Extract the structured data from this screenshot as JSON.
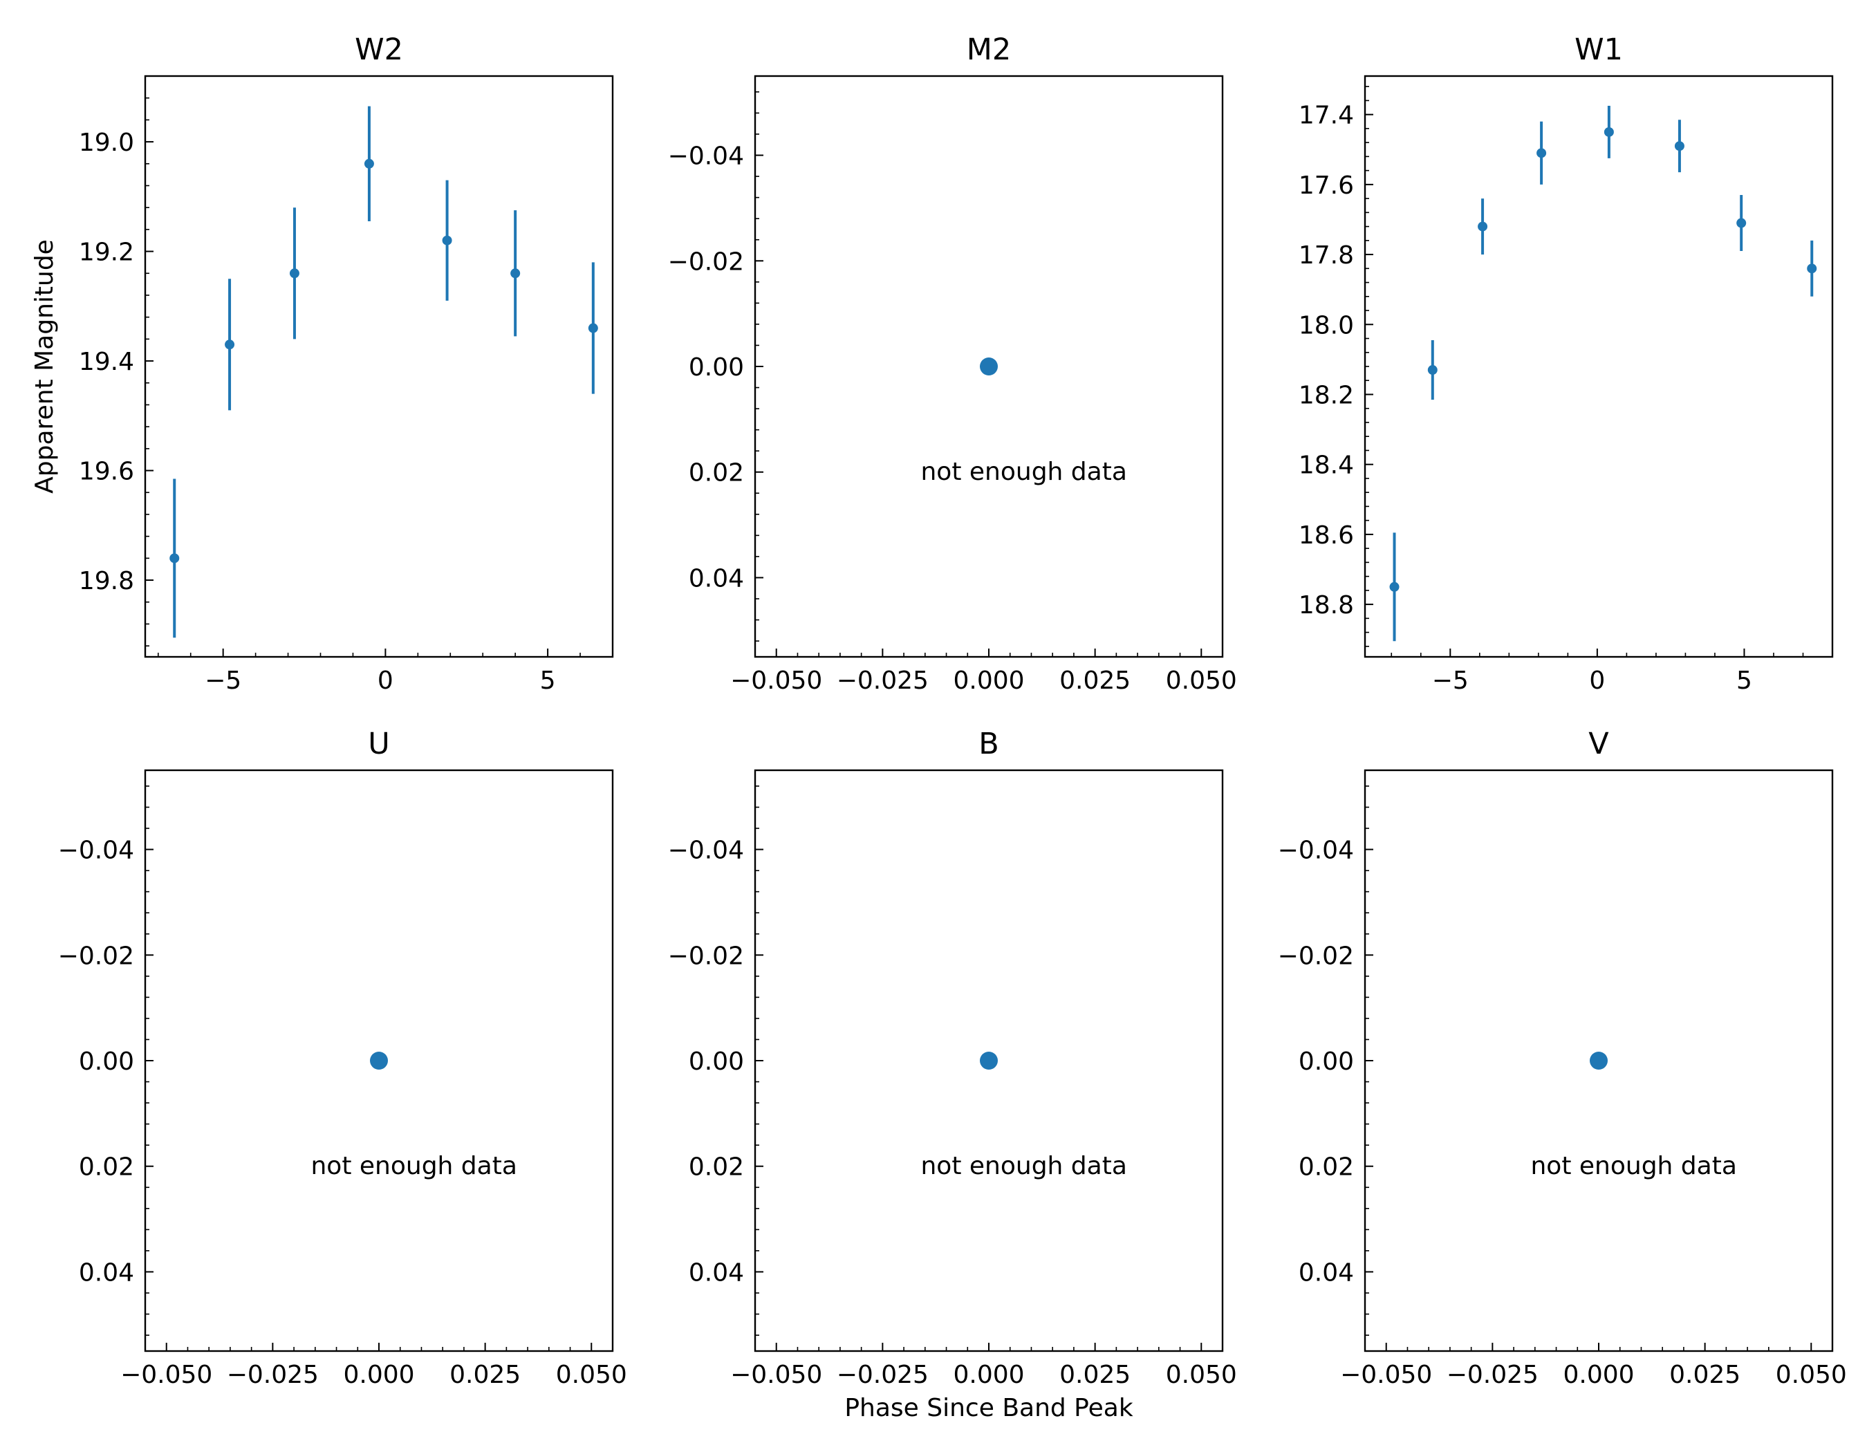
{
  "colors": {
    "series": "#1f77b4",
    "axes": "#000000",
    "background": "#ffffff"
  },
  "figure": {
    "shared_xlabel": "Phase Since Band Peak",
    "shared_ylabel": "Apparent Magnitude"
  },
  "chart_data": [
    {
      "type": "scatter",
      "title": "W2",
      "xlim": [
        -7.4,
        7.0
      ],
      "ylim": [
        19.94,
        18.88
      ],
      "y_inverted": true,
      "xticks": [
        -5,
        0,
        5
      ],
      "xtick_labels": [
        "−5",
        "0",
        "5"
      ],
      "yticks": [
        19.0,
        19.2,
        19.4,
        19.6,
        19.8
      ],
      "ytick_labels": [
        "19.0",
        "19.2",
        "19.4",
        "19.6",
        "19.8"
      ],
      "x": [
        -6.5,
        -4.8,
        -2.8,
        -0.5,
        1.9,
        4.0,
        6.4
      ],
      "y": [
        19.76,
        19.37,
        19.24,
        19.04,
        19.18,
        19.24,
        19.34
      ],
      "yerr": [
        0.145,
        0.12,
        0.12,
        0.105,
        0.11,
        0.115,
        0.12
      ],
      "note": ""
    },
    {
      "type": "scatter",
      "title": "M2",
      "xlim": [
        -0.055,
        0.055
      ],
      "ylim": [
        0.055,
        -0.055
      ],
      "y_inverted": true,
      "xticks": [
        -0.05,
        -0.025,
        0.0,
        0.025,
        0.05
      ],
      "xtick_labels": [
        "−0.050",
        "−0.025",
        "0.000",
        "0.025",
        "0.050"
      ],
      "yticks": [
        -0.04,
        -0.02,
        0.0,
        0.02,
        0.04
      ],
      "ytick_labels": [
        "−0.04",
        "−0.02",
        "0.00",
        "0.02",
        "0.04"
      ],
      "x": [
        0.0
      ],
      "y": [
        0.0
      ],
      "yerr": [],
      "note": "not enough data"
    },
    {
      "type": "scatter",
      "title": "W1",
      "xlim": [
        -7.9,
        8.0
      ],
      "ylim": [
        18.95,
        17.29
      ],
      "y_inverted": true,
      "xticks": [
        -5,
        0,
        5
      ],
      "xtick_labels": [
        "−5",
        "0",
        "5"
      ],
      "yticks": [
        17.4,
        17.6,
        17.8,
        18.0,
        18.2,
        18.4,
        18.6,
        18.8
      ],
      "ytick_labels": [
        "17.4",
        "17.6",
        "17.8",
        "18.0",
        "18.2",
        "18.4",
        "18.6",
        "18.8"
      ],
      "x": [
        -6.9,
        -5.6,
        -3.9,
        -1.9,
        0.4,
        2.8,
        4.9,
        7.3
      ],
      "y": [
        18.75,
        18.13,
        17.72,
        17.51,
        17.45,
        17.49,
        17.71,
        17.84
      ],
      "yerr": [
        0.155,
        0.085,
        0.08,
        0.09,
        0.075,
        0.075,
        0.08,
        0.08
      ],
      "note": ""
    },
    {
      "type": "scatter",
      "title": "U",
      "xlim": [
        -0.055,
        0.055
      ],
      "ylim": [
        0.055,
        -0.055
      ],
      "y_inverted": true,
      "xticks": [
        -0.05,
        -0.025,
        0.0,
        0.025,
        0.05
      ],
      "xtick_labels": [
        "−0.050",
        "−0.025",
        "0.000",
        "0.025",
        "0.050"
      ],
      "yticks": [
        -0.04,
        -0.02,
        0.0,
        0.02,
        0.04
      ],
      "ytick_labels": [
        "−0.04",
        "−0.02",
        "0.00",
        "0.02",
        "0.04"
      ],
      "x": [
        0.0
      ],
      "y": [
        0.0
      ],
      "yerr": [],
      "note": "not enough data"
    },
    {
      "type": "scatter",
      "title": "B",
      "xlim": [
        -0.055,
        0.055
      ],
      "ylim": [
        0.055,
        -0.055
      ],
      "y_inverted": true,
      "xticks": [
        -0.05,
        -0.025,
        0.0,
        0.025,
        0.05
      ],
      "xtick_labels": [
        "−0.050",
        "−0.025",
        "0.000",
        "0.025",
        "0.050"
      ],
      "yticks": [
        -0.04,
        -0.02,
        0.0,
        0.02,
        0.04
      ],
      "ytick_labels": [
        "−0.04",
        "−0.02",
        "0.00",
        "0.02",
        "0.04"
      ],
      "x": [
        0.0
      ],
      "y": [
        0.0
      ],
      "yerr": [],
      "note": "not enough data"
    },
    {
      "type": "scatter",
      "title": "V",
      "xlim": [
        -0.055,
        0.055
      ],
      "ylim": [
        0.055,
        -0.055
      ],
      "y_inverted": true,
      "xticks": [
        -0.05,
        -0.025,
        0.0,
        0.025,
        0.05
      ],
      "xtick_labels": [
        "−0.050",
        "−0.025",
        "0.000",
        "0.025",
        "0.050"
      ],
      "yticks": [
        -0.04,
        -0.02,
        0.0,
        0.02,
        0.04
      ],
      "ytick_labels": [
        "−0.04",
        "−0.02",
        "0.00",
        "0.02",
        "0.04"
      ],
      "x": [
        0.0
      ],
      "y": [
        0.0
      ],
      "yerr": [],
      "note": "not enough data"
    }
  ]
}
